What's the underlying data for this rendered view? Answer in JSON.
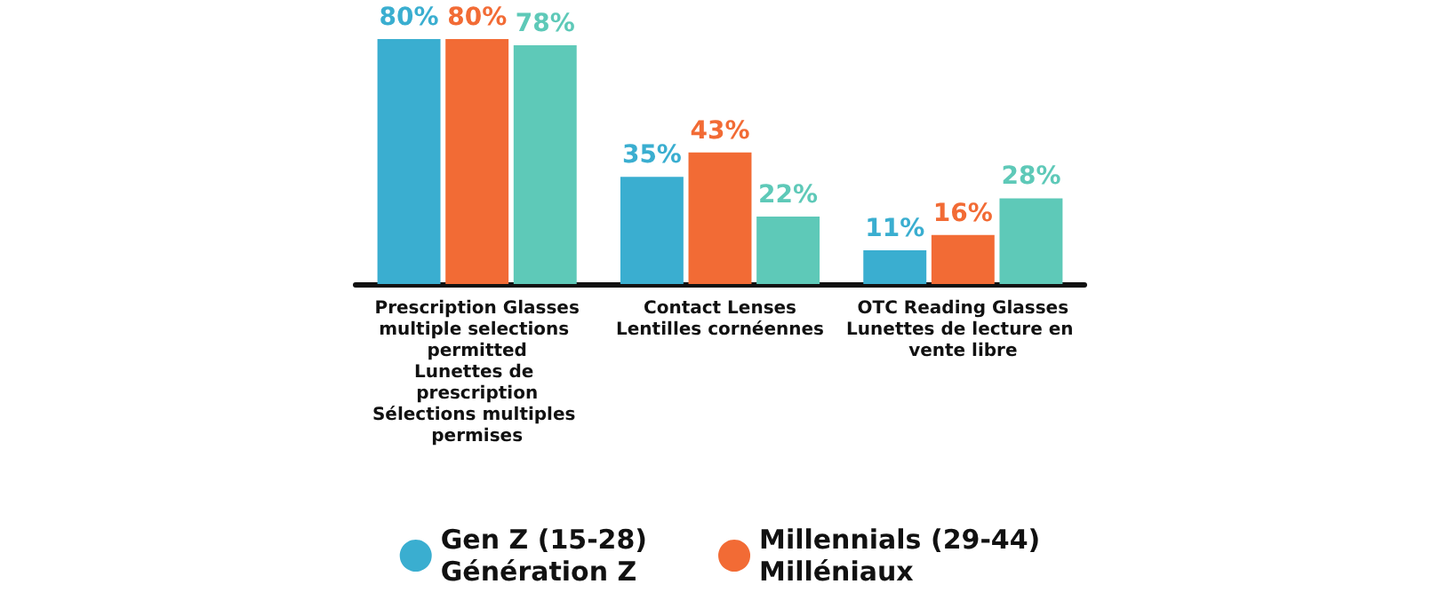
{
  "chart_data": {
    "type": "bar",
    "categories": [
      "Prescription Glasses\nmultiple selections permitted\nLunettes de prescription\nSélections multiples permises",
      "Contact Lenses\nLentilles cornéennes",
      "OTC Reading Glasses\nLunettes de lecture en vente libre"
    ],
    "series": [
      {
        "name": "Gen Z (15-28)\nGénération Z",
        "color": "#3aaed0",
        "values": [
          80,
          35,
          11
        ],
        "value_labels": [
          "80%",
          "35%",
          "11%"
        ]
      },
      {
        "name": "Millennials (29-44)\nMilléniaux",
        "color": "#f26b35",
        "values": [
          80,
          43,
          16
        ],
        "value_labels": [
          "80%",
          "43%",
          "16%"
        ]
      },
      {
        "color": "#5ec9b8",
        "values": [
          78,
          22,
          28
        ],
        "value_labels": [
          "78%",
          "22%",
          "28%"
        ]
      }
    ],
    "legend": "bottom"
  }
}
